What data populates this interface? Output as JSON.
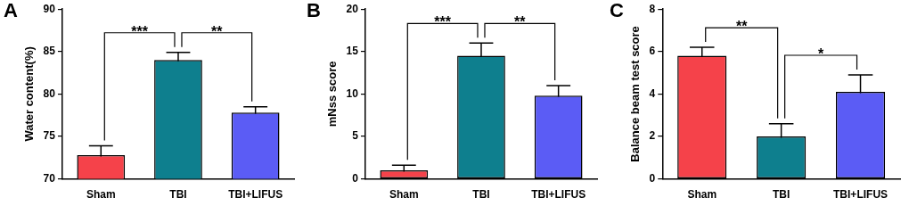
{
  "chart_data": [
    {
      "type": "bar",
      "title": "A",
      "y_label": "Water content(%)",
      "categories": [
        "Sham",
        "TBI",
        "TBI+LIFUS"
      ],
      "values": [
        72.8,
        84.0,
        77.8
      ],
      "errors": [
        1.1,
        0.9,
        0.7
      ],
      "colors": [
        "#f5424a",
        "#0e7f8e",
        "#5b5cf5"
      ],
      "ylim": [
        70,
        90
      ],
      "yticks": [
        70,
        75,
        80,
        85,
        90
      ],
      "grid": false,
      "annotations": [
        {
          "from": "Sham",
          "to": "TBI",
          "text": "***"
        },
        {
          "from": "TBI",
          "to": "TBI+LIFUS",
          "text": "**"
        }
      ]
    },
    {
      "type": "bar",
      "title": "B",
      "y_label": "mNss score",
      "categories": [
        "Sham",
        "TBI",
        "TBI+LIFUS"
      ],
      "values": [
        1.0,
        14.5,
        9.8
      ],
      "errors": [
        0.6,
        1.5,
        1.2
      ],
      "colors": [
        "#f5424a",
        "#0e7f8e",
        "#5b5cf5"
      ],
      "ylim": [
        0,
        20
      ],
      "yticks": [
        0,
        5,
        10,
        15,
        20
      ],
      "grid": false,
      "annotations": [
        {
          "from": "Sham",
          "to": "TBI",
          "text": "***"
        },
        {
          "from": "TBI",
          "to": "TBI+LIFUS",
          "text": "**"
        }
      ]
    },
    {
      "type": "bar",
      "title": "C",
      "y_label": "Balance beam test score",
      "categories": [
        "Sham",
        "TBI",
        "TBI+LIFUS"
      ],
      "values": [
        5.8,
        2.0,
        4.1
      ],
      "errors": [
        0.4,
        0.6,
        0.8
      ],
      "colors": [
        "#f5424a",
        "#0e7f8e",
        "#5b5cf5"
      ],
      "ylim": [
        0,
        8
      ],
      "yticks": [
        0,
        2,
        4,
        6,
        8
      ],
      "grid": false,
      "annotations": [
        {
          "from": "Sham",
          "to": "TBI",
          "text": "**"
        },
        {
          "from": "TBI",
          "to": "TBI+LIFUS",
          "text": "*"
        }
      ]
    }
  ]
}
